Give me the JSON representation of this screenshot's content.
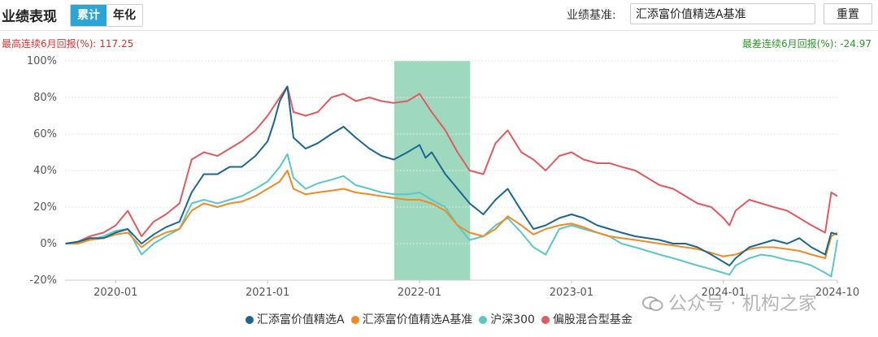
{
  "header": {
    "title": "业绩表现",
    "toggle": [
      {
        "label": "累计",
        "active": true
      },
      {
        "label": "年化",
        "active": false
      }
    ],
    "benchmark_label": "业绩基准:",
    "benchmark_value": "汇添富价值精选A基准",
    "reset_label": "重置"
  },
  "stats": {
    "max_label": "最高连续6月回报(%): 117.25",
    "min_label": "最差连续6月回报(%): -24.97"
  },
  "watermark": "公众号 · 机构之家",
  "chart_data": {
    "type": "line",
    "title": "",
    "xlabel": "",
    "ylabel": "",
    "x_ticks": [
      "2020-01",
      "2021-01",
      "2022-01",
      "2023-01",
      "2024-01",
      "2024-10"
    ],
    "y_ticks": [
      "-20%",
      "0%",
      "20%",
      "40%",
      "60%",
      "80%",
      "100%"
    ],
    "ylim": [
      -20,
      100
    ],
    "xlim": [
      "2019-09",
      "2024-10"
    ],
    "grid": true,
    "legend_position": "bottom",
    "highlight_range": [
      "2021-11",
      "2022-05"
    ],
    "highlight_color": "#9ed9bf",
    "series": [
      {
        "name": "汇添富价值精选A",
        "color": "#1c6690",
        "values": [
          [
            2019.67,
            0
          ],
          [
            2019.75,
            1
          ],
          [
            2019.83,
            3
          ],
          [
            2019.92,
            3
          ],
          [
            2020.0,
            6
          ],
          [
            2020.08,
            8
          ],
          [
            2020.17,
            0
          ],
          [
            2020.25,
            5
          ],
          [
            2020.33,
            9
          ],
          [
            2020.42,
            12
          ],
          [
            2020.5,
            28
          ],
          [
            2020.58,
            38
          ],
          [
            2020.67,
            38
          ],
          [
            2020.75,
            42
          ],
          [
            2020.83,
            42
          ],
          [
            2020.92,
            48
          ],
          [
            2021.0,
            56
          ],
          [
            2021.04,
            66
          ],
          [
            2021.08,
            78
          ],
          [
            2021.13,
            86
          ],
          [
            2021.17,
            58
          ],
          [
            2021.25,
            52
          ],
          [
            2021.33,
            55
          ],
          [
            2021.42,
            60
          ],
          [
            2021.5,
            64
          ],
          [
            2021.58,
            58
          ],
          [
            2021.67,
            52
          ],
          [
            2021.75,
            48
          ],
          [
            2021.83,
            46
          ],
          [
            2021.92,
            50
          ],
          [
            2022.0,
            54
          ],
          [
            2022.04,
            47
          ],
          [
            2022.08,
            50
          ],
          [
            2022.17,
            38
          ],
          [
            2022.25,
            30
          ],
          [
            2022.33,
            22
          ],
          [
            2022.42,
            16
          ],
          [
            2022.5,
            24
          ],
          [
            2022.58,
            30
          ],
          [
            2022.67,
            18
          ],
          [
            2022.75,
            8
          ],
          [
            2022.83,
            10
          ],
          [
            2022.92,
            14
          ],
          [
            2023.0,
            16
          ],
          [
            2023.08,
            14
          ],
          [
            2023.17,
            10
          ],
          [
            2023.25,
            8
          ],
          [
            2023.33,
            6
          ],
          [
            2023.42,
            4
          ],
          [
            2023.5,
            3
          ],
          [
            2023.58,
            2
          ],
          [
            2023.67,
            0
          ],
          [
            2023.75,
            0
          ],
          [
            2023.83,
            -2
          ],
          [
            2023.92,
            -6
          ],
          [
            2024.0,
            -10
          ],
          [
            2024.04,
            -12
          ],
          [
            2024.08,
            -8
          ],
          [
            2024.17,
            -2
          ],
          [
            2024.25,
            0
          ],
          [
            2024.33,
            2
          ],
          [
            2024.42,
            0
          ],
          [
            2024.5,
            3
          ],
          [
            2024.58,
            -2
          ],
          [
            2024.67,
            -6
          ],
          [
            2024.71,
            6
          ],
          [
            2024.75,
            5
          ]
        ]
      },
      {
        "name": "汇添富价值精选A基准",
        "color": "#f08a24",
        "values": [
          [
            2019.67,
            0
          ],
          [
            2019.75,
            0
          ],
          [
            2019.83,
            2
          ],
          [
            2019.92,
            3
          ],
          [
            2020.0,
            5
          ],
          [
            2020.08,
            6
          ],
          [
            2020.17,
            -2
          ],
          [
            2020.25,
            3
          ],
          [
            2020.33,
            6
          ],
          [
            2020.42,
            8
          ],
          [
            2020.5,
            18
          ],
          [
            2020.58,
            22
          ],
          [
            2020.67,
            20
          ],
          [
            2020.75,
            22
          ],
          [
            2020.83,
            23
          ],
          [
            2020.92,
            26
          ],
          [
            2021.0,
            30
          ],
          [
            2021.08,
            34
          ],
          [
            2021.13,
            40
          ],
          [
            2021.17,
            30
          ],
          [
            2021.25,
            27
          ],
          [
            2021.33,
            28
          ],
          [
            2021.42,
            29
          ],
          [
            2021.5,
            30
          ],
          [
            2021.58,
            28
          ],
          [
            2021.67,
            27
          ],
          [
            2021.75,
            26
          ],
          [
            2021.83,
            25
          ],
          [
            2021.92,
            24
          ],
          [
            2022.0,
            24
          ],
          [
            2022.08,
            22
          ],
          [
            2022.17,
            18
          ],
          [
            2022.25,
            10
          ],
          [
            2022.33,
            6
          ],
          [
            2022.42,
            4
          ],
          [
            2022.5,
            8
          ],
          [
            2022.58,
            15
          ],
          [
            2022.67,
            10
          ],
          [
            2022.75,
            5
          ],
          [
            2022.83,
            8
          ],
          [
            2022.92,
            10
          ],
          [
            2023.0,
            11
          ],
          [
            2023.08,
            9
          ],
          [
            2023.17,
            6
          ],
          [
            2023.25,
            4
          ],
          [
            2023.33,
            3
          ],
          [
            2023.42,
            2
          ],
          [
            2023.5,
            1
          ],
          [
            2023.58,
            0
          ],
          [
            2023.67,
            -1
          ],
          [
            2023.75,
            -2
          ],
          [
            2023.83,
            -3
          ],
          [
            2023.92,
            -5
          ],
          [
            2024.0,
            -7
          ],
          [
            2024.08,
            -6
          ],
          [
            2024.17,
            -3
          ],
          [
            2024.25,
            -2
          ],
          [
            2024.33,
            -2
          ],
          [
            2024.42,
            -3
          ],
          [
            2024.5,
            -4
          ],
          [
            2024.58,
            -6
          ],
          [
            2024.67,
            -8
          ],
          [
            2024.71,
            4
          ],
          [
            2024.75,
            6
          ]
        ]
      },
      {
        "name": "沪深300",
        "color": "#5cc7c4",
        "values": [
          [
            2019.67,
            0
          ],
          [
            2019.75,
            1
          ],
          [
            2019.83,
            2
          ],
          [
            2019.92,
            4
          ],
          [
            2020.0,
            7
          ],
          [
            2020.08,
            8
          ],
          [
            2020.17,
            -6
          ],
          [
            2020.25,
            0
          ],
          [
            2020.33,
            4
          ],
          [
            2020.42,
            8
          ],
          [
            2020.5,
            22
          ],
          [
            2020.58,
            24
          ],
          [
            2020.67,
            22
          ],
          [
            2020.75,
            24
          ],
          [
            2020.83,
            26
          ],
          [
            2020.92,
            30
          ],
          [
            2021.0,
            34
          ],
          [
            2021.08,
            42
          ],
          [
            2021.13,
            49
          ],
          [
            2021.17,
            36
          ],
          [
            2021.25,
            30
          ],
          [
            2021.33,
            33
          ],
          [
            2021.42,
            35
          ],
          [
            2021.5,
            37
          ],
          [
            2021.58,
            32
          ],
          [
            2021.67,
            30
          ],
          [
            2021.75,
            28
          ],
          [
            2021.83,
            27
          ],
          [
            2021.92,
            27
          ],
          [
            2022.0,
            28
          ],
          [
            2022.08,
            24
          ],
          [
            2022.17,
            20
          ],
          [
            2022.25,
            10
          ],
          [
            2022.33,
            2
          ],
          [
            2022.42,
            4
          ],
          [
            2022.5,
            10
          ],
          [
            2022.58,
            14
          ],
          [
            2022.67,
            6
          ],
          [
            2022.75,
            -2
          ],
          [
            2022.83,
            -6
          ],
          [
            2022.92,
            8
          ],
          [
            2023.0,
            10
          ],
          [
            2023.08,
            8
          ],
          [
            2023.17,
            6
          ],
          [
            2023.25,
            4
          ],
          [
            2023.33,
            0
          ],
          [
            2023.42,
            -2
          ],
          [
            2023.5,
            -4
          ],
          [
            2023.58,
            -6
          ],
          [
            2023.67,
            -8
          ],
          [
            2023.75,
            -10
          ],
          [
            2023.83,
            -12
          ],
          [
            2023.92,
            -14
          ],
          [
            2024.0,
            -16
          ],
          [
            2024.04,
            -17
          ],
          [
            2024.08,
            -12
          ],
          [
            2024.17,
            -8
          ],
          [
            2024.25,
            -6
          ],
          [
            2024.33,
            -7
          ],
          [
            2024.42,
            -9
          ],
          [
            2024.5,
            -10
          ],
          [
            2024.58,
            -12
          ],
          [
            2024.67,
            -16
          ],
          [
            2024.71,
            -18
          ],
          [
            2024.73,
            -8
          ],
          [
            2024.75,
            2
          ]
        ]
      },
      {
        "name": "偏股混合型基金",
        "color": "#e05a60",
        "values": [
          [
            2019.67,
            0
          ],
          [
            2019.75,
            1
          ],
          [
            2019.83,
            4
          ],
          [
            2019.92,
            6
          ],
          [
            2020.0,
            10
          ],
          [
            2020.08,
            18
          ],
          [
            2020.17,
            4
          ],
          [
            2020.25,
            12
          ],
          [
            2020.33,
            16
          ],
          [
            2020.42,
            22
          ],
          [
            2020.5,
            46
          ],
          [
            2020.58,
            50
          ],
          [
            2020.67,
            48
          ],
          [
            2020.75,
            52
          ],
          [
            2020.83,
            56
          ],
          [
            2020.92,
            62
          ],
          [
            2021.0,
            70
          ],
          [
            2021.08,
            80
          ],
          [
            2021.13,
            86
          ],
          [
            2021.17,
            72
          ],
          [
            2021.25,
            70
          ],
          [
            2021.33,
            72
          ],
          [
            2021.42,
            80
          ],
          [
            2021.5,
            82
          ],
          [
            2021.58,
            78
          ],
          [
            2021.67,
            80
          ],
          [
            2021.75,
            78
          ],
          [
            2021.83,
            77
          ],
          [
            2021.92,
            78
          ],
          [
            2022.0,
            82
          ],
          [
            2022.08,
            72
          ],
          [
            2022.17,
            62
          ],
          [
            2022.25,
            50
          ],
          [
            2022.33,
            40
          ],
          [
            2022.42,
            38
          ],
          [
            2022.5,
            55
          ],
          [
            2022.58,
            62
          ],
          [
            2022.67,
            50
          ],
          [
            2022.75,
            46
          ],
          [
            2022.83,
            40
          ],
          [
            2022.92,
            48
          ],
          [
            2023.0,
            50
          ],
          [
            2023.08,
            46
          ],
          [
            2023.17,
            44
          ],
          [
            2023.25,
            44
          ],
          [
            2023.33,
            42
          ],
          [
            2023.42,
            40
          ],
          [
            2023.5,
            36
          ],
          [
            2023.58,
            32
          ],
          [
            2023.67,
            30
          ],
          [
            2023.75,
            26
          ],
          [
            2023.83,
            22
          ],
          [
            2023.92,
            20
          ],
          [
            2024.0,
            14
          ],
          [
            2024.04,
            10
          ],
          [
            2024.08,
            18
          ],
          [
            2024.17,
            24
          ],
          [
            2024.25,
            22
          ],
          [
            2024.33,
            20
          ],
          [
            2024.42,
            18
          ],
          [
            2024.5,
            14
          ],
          [
            2024.58,
            10
          ],
          [
            2024.67,
            6
          ],
          [
            2024.71,
            28
          ],
          [
            2024.75,
            26
          ]
        ]
      }
    ]
  }
}
